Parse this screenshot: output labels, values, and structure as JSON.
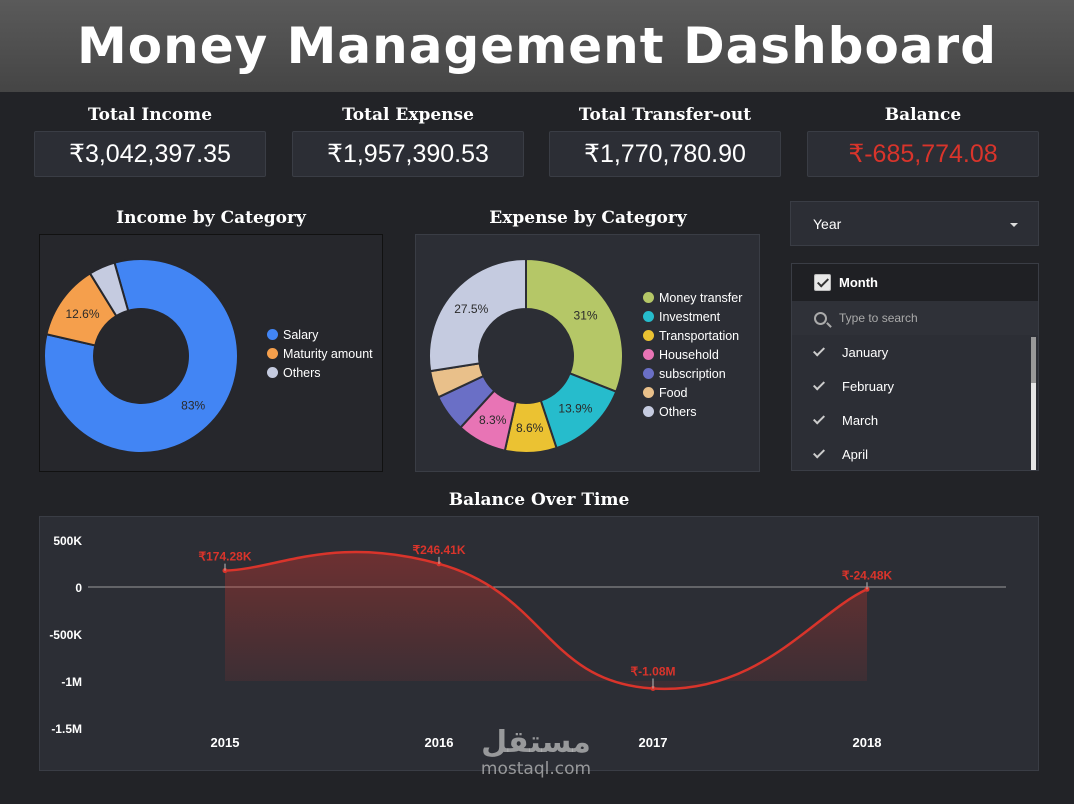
{
  "header": {
    "title": "Money Management Dashboard"
  },
  "kpis": [
    {
      "label": "Total Income",
      "value": "₹3,042,397.35",
      "negative": false
    },
    {
      "label": "Total Expense",
      "value": "₹1,957,390.53",
      "negative": false
    },
    {
      "label": "Total Transfer-out",
      "value": "₹1,770,780.90",
      "negative": false
    },
    {
      "label": "Balance",
      "value": "₹-685,774.08",
      "negative": true
    }
  ],
  "colors": {
    "negative": "#d9342b",
    "line": "#d9342b"
  },
  "filters": {
    "year_dropdown": {
      "label": "Year"
    },
    "month_list": {
      "header": "Month",
      "search_placeholder": "Type to search",
      "items": [
        "January",
        "February",
        "March",
        "April"
      ]
    }
  },
  "watermark": {
    "arabic": "مستقل",
    "latin": "mostaql.com"
  },
  "chart_data": [
    {
      "type": "pie",
      "title": "Income by Category",
      "donut": true,
      "legend": "right",
      "slices": [
        {
          "name": "Salary",
          "value": 83,
          "label": "83%",
          "color": "#4285f4"
        },
        {
          "name": "Maturity amount",
          "value": 12.6,
          "label": "12.6%",
          "color": "#f59f4c"
        },
        {
          "name": "Others",
          "value": 4.4,
          "label": "",
          "color": "#c5cbe0"
        }
      ]
    },
    {
      "type": "pie",
      "title": "Expense by Category",
      "donut": true,
      "legend": "right",
      "slices": [
        {
          "name": "Money transfer",
          "value": 31,
          "label": "31%",
          "color": "#b5c767"
        },
        {
          "name": "Investment",
          "value": 13.9,
          "label": "13.9%",
          "color": "#26bccc"
        },
        {
          "name": "Transportation",
          "value": 8.6,
          "label": "8.6%",
          "color": "#ebc232"
        },
        {
          "name": "Household",
          "value": 8.3,
          "label": "8.3%",
          "color": "#e874b5"
        },
        {
          "name": "subscription",
          "value": 6.2,
          "label": "",
          "color": "#6a6fc6"
        },
        {
          "name": "Food",
          "value": 4.5,
          "label": "",
          "color": "#e9c08a"
        },
        {
          "name": "Others",
          "value": 27.5,
          "label": "27.5%",
          "color": "#c5cbe0"
        }
      ]
    },
    {
      "type": "area",
      "title": "Balance Over Time",
      "x": [
        "2015",
        "2016",
        "2017",
        "2018"
      ],
      "series": [
        {
          "values": [
            174280,
            246410,
            -1080000,
            -24480
          ],
          "labels": [
            "₹174.28K",
            "₹246.41K",
            "₹-1.08M",
            "₹-24.48K"
          ]
        }
      ],
      "ylim": [
        -1500000,
        500000
      ],
      "yticks": [
        500000,
        0,
        -500000,
        -1000000,
        -1500000
      ],
      "ytick_labels": [
        "500K",
        "0",
        "-500K",
        "-1M",
        "-1.5M"
      ],
      "grid": false,
      "zero_line": true
    }
  ]
}
